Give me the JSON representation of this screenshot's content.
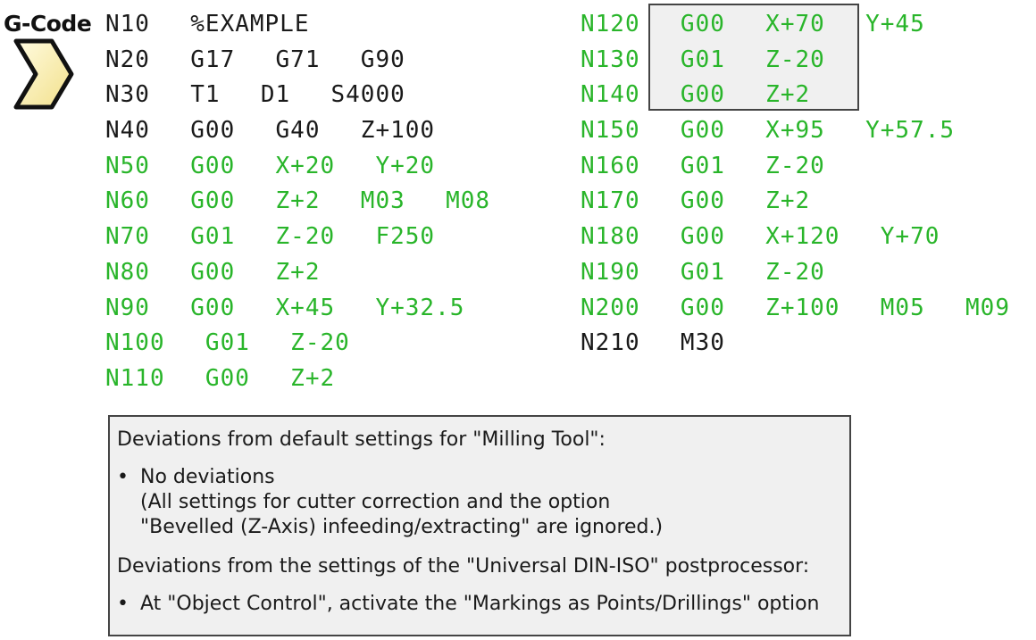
{
  "title": "G-Code",
  "colors": {
    "black_text": "#1a1a1a",
    "green_text": "#29b52a",
    "box_bg": "#f0f0f0",
    "chevron_fill": "#fbf2b5"
  },
  "icon": "chevron-right-icon",
  "left_column": [
    {
      "text": "N10  %EXAMPLE",
      "color": "black"
    },
    {
      "text": "N20  G17  G71  G90",
      "color": "black"
    },
    {
      "text": "N30  T1  D1  S4000",
      "color": "black"
    },
    {
      "text": "N40  G00  G40  Z+100",
      "color": "black"
    },
    {
      "text": "N50  G00  X+20  Y+20",
      "color": "green"
    },
    {
      "text": "N60  G00  Z+2  M03  M08",
      "color": "green"
    },
    {
      "text": "N70  G01  Z-20  F250",
      "color": "green"
    },
    {
      "text": "N80  G00  Z+2",
      "color": "green"
    },
    {
      "text": "N90  G00  X+45  Y+32.5",
      "color": "green"
    },
    {
      "text": "N100  G01  Z-20",
      "color": "green"
    },
    {
      "text": "N110  G00  Z+2",
      "color": "green"
    }
  ],
  "right_column": [
    {
      "text": "N120  G00  X+70  Y+45",
      "color": "green"
    },
    {
      "text": "N130  G01  Z-20",
      "color": "green"
    },
    {
      "text": "N140  G00  Z+2",
      "color": "green"
    },
    {
      "text": "N150  G00  X+95  Y+57.5",
      "color": "green"
    },
    {
      "text": "N160  G01  Z-20",
      "color": "green"
    },
    {
      "text": "N170  G00  Z+2",
      "color": "green"
    },
    {
      "text": "N180  G00  X+120  Y+70",
      "color": "green"
    },
    {
      "text": "N190  G01  Z-20",
      "color": "green"
    },
    {
      "text": "N200  G00  Z+100  M05  M09",
      "color": "green"
    },
    {
      "text": "N210  M30",
      "color": "black"
    }
  ],
  "notes": {
    "heading1": "Deviations from default settings for \"Milling Tool\":",
    "item1_line1": "No deviations",
    "item1_line2": "(All settings for cutter correction and the option",
    "item1_line3": "\"Bevelled (Z-Axis) infeeding/extracting\" are ignored.)",
    "heading2": "Deviations from the settings of the \"Universal DIN-ISO\" postprocessor:",
    "item2": "At \"Object Control\", activate the \"Markings as Points/Drillings\" option",
    "bullet": "•"
  }
}
